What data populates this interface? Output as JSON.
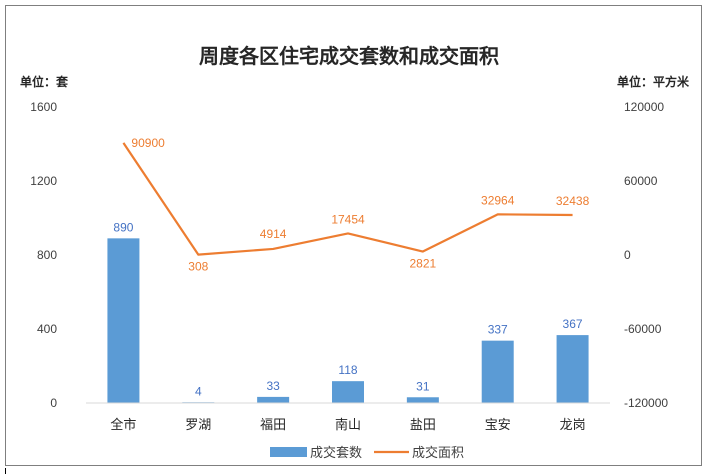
{
  "chart_data": {
    "type": "bar+line",
    "title": "周度各区住宅成交套数和成交面积",
    "left_unit": "单位：套",
    "right_unit": "单位：平方米",
    "categories": [
      "全市",
      "罗湖",
      "福田",
      "南山",
      "盐田",
      "宝安",
      "龙岗"
    ],
    "series": [
      {
        "name": "成交套数",
        "type": "bar",
        "axis": "left",
        "color": "#5b9bd5",
        "values": [
          890,
          4,
          33,
          118,
          31,
          337,
          367
        ]
      },
      {
        "name": "成交面积",
        "type": "line",
        "axis": "right",
        "color": "#ed7d31",
        "values": [
          90900,
          308,
          4914,
          17454,
          2821,
          32964,
          32438
        ]
      }
    ],
    "left_axis": {
      "min": 0,
      "max": 1600,
      "ticks": [
        "0",
        "400",
        "800",
        "1200",
        "1600"
      ]
    },
    "right_axis": {
      "min": -120000,
      "max": 120000,
      "ticks": [
        "-120000",
        "-60000",
        "0",
        "60000",
        "120000"
      ]
    },
    "grid": false,
    "legend_position": "bottom"
  }
}
